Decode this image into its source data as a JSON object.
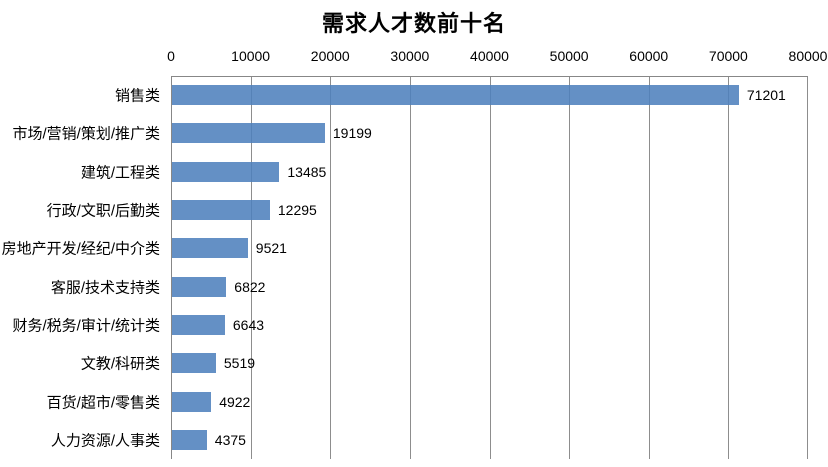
{
  "title": "需求人才数前十名",
  "chart_data": {
    "type": "bar",
    "orientation": "horizontal",
    "title": "需求人才数前十名",
    "categories": [
      "销售类",
      "市场/营销/策划/推广类",
      "建筑/工程类",
      "行政/文职/后勤类",
      "房地产开发/经纪/中介类",
      "客服/技术支持类",
      "财务/税务/审计/统计类",
      "文教/科研类",
      "百货/超市/零售类",
      "人力资源/人事类"
    ],
    "values": [
      71201,
      19199,
      13485,
      12295,
      9521,
      6822,
      6643,
      5519,
      4922,
      4375
    ],
    "data_labels": [
      "71201",
      "19199",
      "13485",
      "12295",
      "9521",
      "6822",
      "6643",
      "5519",
      "4922",
      "4375"
    ],
    "xlabel": "",
    "ylabel": "",
    "xlim": [
      0,
      80000
    ],
    "x_ticks": [
      0,
      10000,
      20000,
      30000,
      40000,
      50000,
      60000,
      70000,
      80000
    ],
    "grid": "vertical-gridlines-on",
    "legend": "none",
    "bar_color": "#4F81BD",
    "gridline_color": "#8D8D8D",
    "axis_line_color": "#878787",
    "text_color": "#000000",
    "background": "#FFFFFF"
  }
}
